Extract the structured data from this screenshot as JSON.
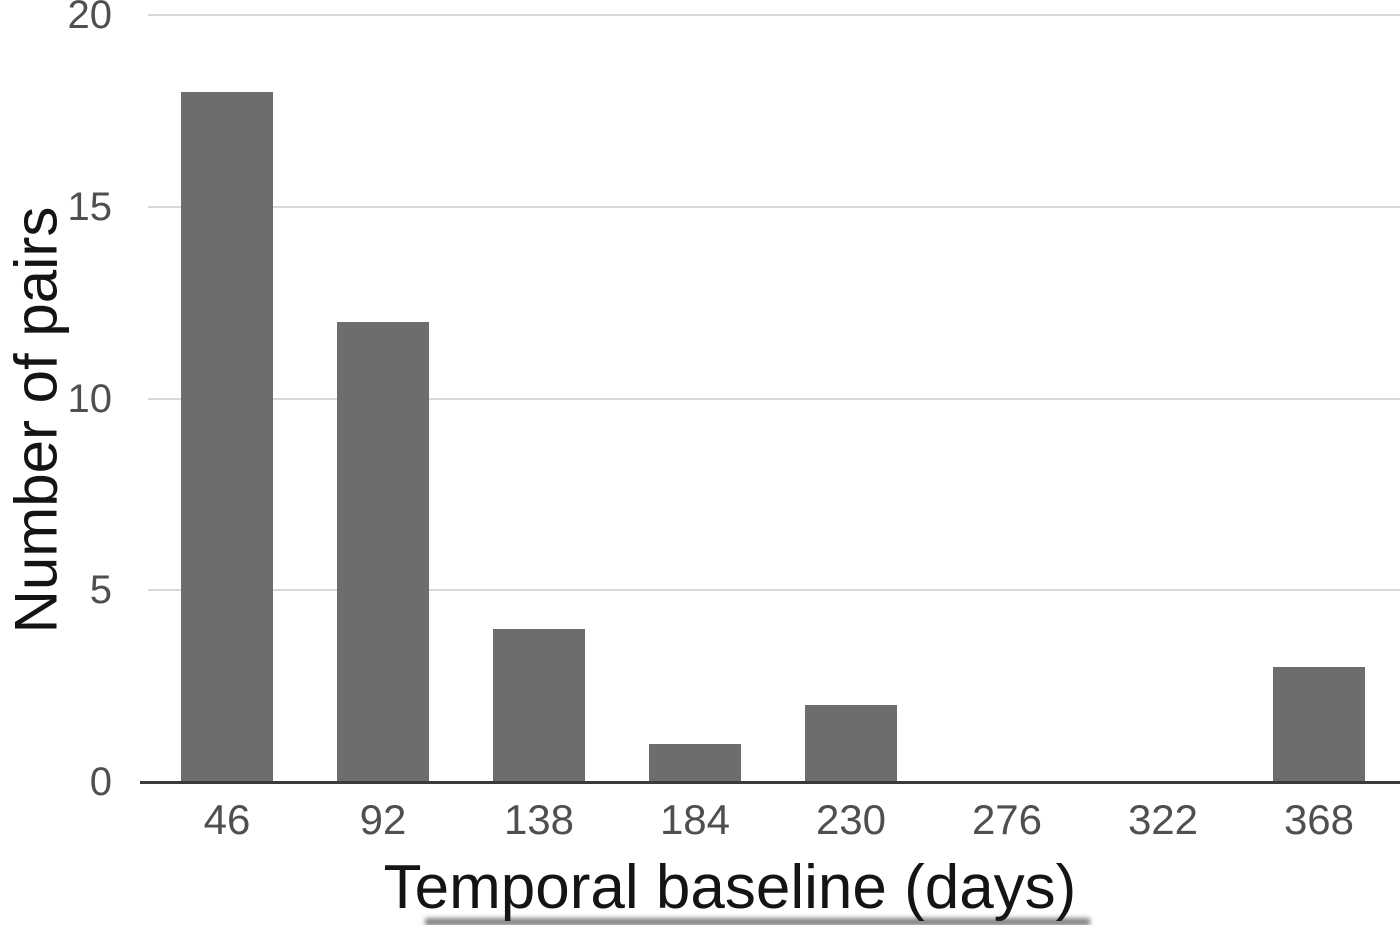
{
  "chart_data": {
    "type": "bar",
    "categories": [
      "46",
      "92",
      "138",
      "184",
      "230",
      "276",
      "322",
      "368"
    ],
    "values": [
      18,
      12,
      4,
      1,
      2,
      0,
      0,
      3
    ],
    "title": "",
    "xlabel": "Temporal baseline (days)",
    "ylabel": "Number of pairs",
    "yticks": [
      0,
      5,
      10,
      15,
      20
    ],
    "ylim": [
      0,
      20
    ],
    "grid": "horizontal",
    "legend": "none",
    "colors": {
      "bar": "#6d6d6d",
      "gridline": "#d8d8d8",
      "axis_line": "#3a3a3a",
      "tick_label": "#4f4f4f",
      "axis_title": "#141414",
      "background": "#ffffff"
    }
  }
}
